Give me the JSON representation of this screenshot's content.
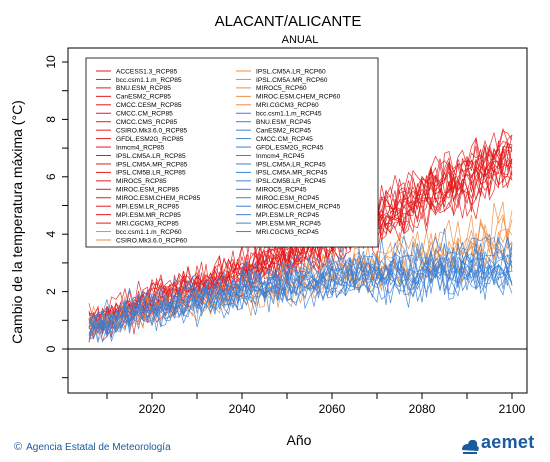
{
  "title": "ALACANT/ALICANTE",
  "subtitle": "ANUAL",
  "ylabel": "Cambio de la temperatura máxima (°C)",
  "xlabel": "Año",
  "credit": "Agencia Estatal de Meteorología",
  "logo_text": "aemet",
  "colors": {
    "rcp85": "#e41a1c",
    "rcp60": "#f08a3c",
    "rcp45": "#3b7fd6",
    "zero_line": "#000000"
  },
  "legend": {
    "col1": [
      "ACCESS1.3_RCP85",
      "bcc.csm1.1.m_RCP85",
      "BNU.ESM_RCP85",
      "CanESM2_RCP85",
      "CMCC.CESM_RCP85",
      "CMCC.CM_RCP85",
      "CMCC.CMS_RCP85",
      "CSIRO.Mk3.6.0_RCP85",
      "GFDL.ESM2G_RCP85",
      "Inmcm4_RCP85",
      "IPSL.CM5A.LR_RCP85",
      "IPSL.CM5A.MR_RCP85",
      "IPSL.CM5B.LR_RCP85",
      "MIROC5_RCP85",
      "MIROC.ESM_RCP85",
      "MIROC.ESM.CHEM_RCP85",
      "MPI.ESM.LR_RCP85",
      "MPI.ESM.MR_RCP85",
      "MRI.CGCM3_RCP85",
      "bcc.csm1.1.m_RCP60",
      "CSIRO.Mk3.6.0_RCP60"
    ],
    "col1_scenarios": [
      "rcp85",
      "rcp85",
      "rcp85",
      "rcp85",
      "rcp85",
      "rcp85",
      "rcp85",
      "rcp85",
      "rcp85",
      "rcp85",
      "rcp85",
      "rcp85",
      "rcp85",
      "rcp85",
      "rcp85",
      "rcp85",
      "rcp85",
      "rcp85",
      "rcp85",
      "rcp60",
      "rcp60"
    ],
    "col2": [
      "IPSL.CM5A.LR_RCP60",
      "IPSL.CM5A.MR_RCP60",
      "MIROC5_RCP60",
      "MIROC.ESM.CHEM_RCP60",
      "MRI.CGCM3_RCP60",
      "bcc.csm1.1.m_RCP45",
      "BNU.ESM_RCP45",
      "CanESM2_RCP45",
      "CMCC.CM_RCP45",
      "GFDL.ESM2G_RCP45",
      "Inmcm4_RCP45",
      "IPSL.CM5A.LR_RCP45",
      "IPSL.CM5A.MR_RCP45",
      "IPSL.CM5B.LR_RCP45",
      "MIROC5_RCP45",
      "MIROC.ESM_RCP45",
      "MIROC.ESM.CHEM_RCP45",
      "MPI.ESM.LR_RCP45",
      "MPI.ESM.MR_RCP45",
      "MRI.CGCM3_RCP45"
    ],
    "col2_scenarios": [
      "rcp60",
      "rcp60",
      "rcp60",
      "rcp60",
      "rcp60",
      "rcp45",
      "rcp45",
      "rcp45",
      "rcp45",
      "rcp45",
      "rcp45",
      "rcp45",
      "rcp45",
      "rcp45",
      "rcp45",
      "rcp45",
      "rcp45",
      "rcp45",
      "rcp45",
      "rcp45"
    ]
  },
  "chart_data": {
    "type": "line",
    "title": "ALACANT/ALICANTE",
    "subtitle": "ANUAL",
    "xlabel": "Año",
    "ylabel": "Cambio de la temperatura máxima (°C)",
    "xlim": [
      2006,
      2100
    ],
    "ylim": [
      -1.5,
      10.2
    ],
    "xticks": [
      2020,
      2040,
      2060,
      2080,
      2100
    ],
    "yticks": [
      0,
      2,
      4,
      6,
      8,
      10
    ],
    "grid": false,
    "legend_position": "top-left",
    "reference_line": 0,
    "scenarios": [
      {
        "name": "RCP85",
        "color": "#e41a1c",
        "members": 19,
        "mean_path": {
          "x": [
            2006,
            2020,
            2040,
            2060,
            2080,
            2100
          ],
          "y": [
            0.9,
            1.7,
            2.7,
            3.9,
            5.3,
            6.8
          ]
        },
        "spread": 0.9
      },
      {
        "name": "RCP60",
        "color": "#f08a3c",
        "members": 7,
        "mean_path": {
          "x": [
            2006,
            2020,
            2040,
            2060,
            2080,
            2100
          ],
          "y": [
            0.8,
            1.4,
            2.0,
            2.6,
            3.2,
            3.9
          ]
        },
        "spread": 0.7
      },
      {
        "name": "RCP45",
        "color": "#3b7fd6",
        "members": 15,
        "mean_path": {
          "x": [
            2006,
            2020,
            2040,
            2060,
            2080,
            2100
          ],
          "y": [
            0.8,
            1.5,
            2.2,
            2.6,
            2.9,
            3.0
          ]
        },
        "spread": 0.8
      }
    ]
  }
}
